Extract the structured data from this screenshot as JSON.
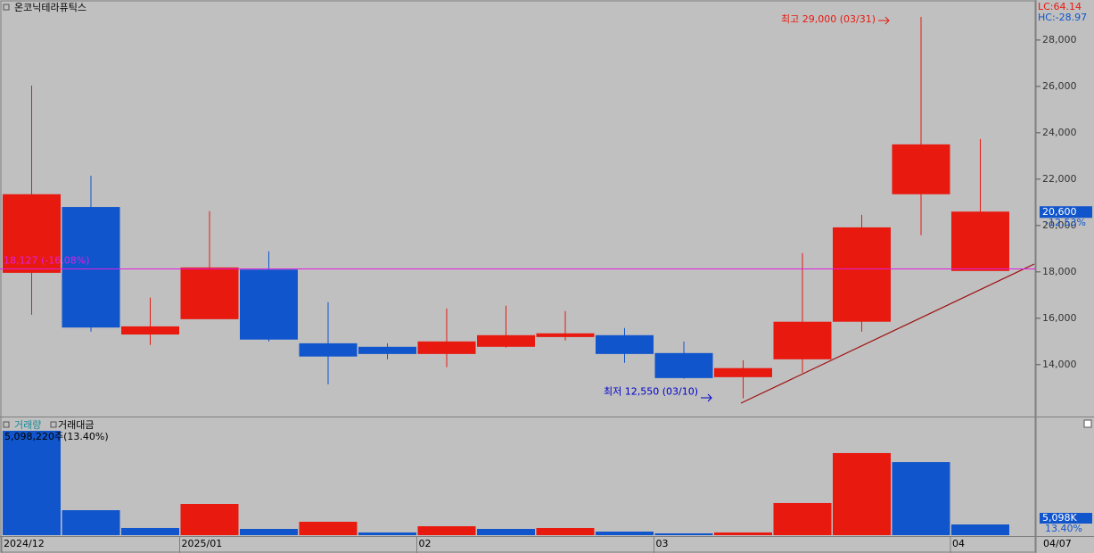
{
  "chart_data": [
    {
      "type": "candlestick",
      "title": "온코닉테라퓨틱스",
      "lc_label": "LC:64.14",
      "hc_label": "HC:-28.97",
      "up_color": "#e8190f",
      "down_color": "#1155cc",
      "open": [
        17960,
        20800,
        15300,
        15960,
        18100,
        14920,
        14770,
        14460,
        14770,
        15190,
        15270,
        14500,
        13460,
        14230,
        15850,
        21350,
        18040
      ],
      "high": [
        26040,
        22150,
        16890,
        20620,
        18890,
        16690,
        14920,
        16420,
        16540,
        16310,
        15580,
        15000,
        14190,
        18810,
        20460,
        29000,
        23730
      ],
      "low": [
        16150,
        15420,
        14850,
        15960,
        15000,
        13150,
        14230,
        13890,
        14730,
        15040,
        14080,
        13390,
        12550,
        13650,
        15420,
        19580,
        18040
      ],
      "close": [
        21350,
        15600,
        15650,
        18190,
        15080,
        14350,
        14460,
        15000,
        15270,
        15350,
        14460,
        13420,
        13850,
        15850,
        19920,
        23500,
        20600
      ],
      "ylim": [
        11800,
        29650
      ],
      "yticks": [
        {
          "value": 14000,
          "label": "14,000"
        },
        {
          "value": 16000,
          "label": "16,000"
        },
        {
          "value": 18000,
          "label": "18,000"
        },
        {
          "value": 20000,
          "label": "20,000"
        },
        {
          "value": 22000,
          "label": "22,000"
        },
        {
          "value": 24000,
          "label": "24,000"
        },
        {
          "value": 26000,
          "label": "26,000"
        },
        {
          "value": 28000,
          "label": "28,000"
        }
      ],
      "high_annotation": {
        "value": 29000,
        "label": "최고 29,000 (03/31)"
      },
      "low_annotation": {
        "value": 12550,
        "label": "최저 12,550 (03/10)"
      },
      "reference_line": {
        "value": 18127,
        "label": "18,127 (-16.08%)",
        "color": "#e020e0"
      },
      "current_price": {
        "value": 20600,
        "label": "20,600",
        "change": "-12.53%"
      }
    },
    {
      "type": "bar",
      "legend": [
        "거래량",
        "거래대금"
      ],
      "max_label": "5,098,220주(13.40%)",
      "right_labels": [
        "5,098K",
        "13.40%"
      ],
      "categories": [
        "2024/12",
        null,
        null,
        "2025/01",
        null,
        null,
        null,
        "02",
        null,
        null,
        null,
        "03",
        null,
        null,
        null,
        null,
        "04"
      ],
      "last_label": "04/07",
      "values": [
        5098220,
        1220000,
        349000,
        1525000,
        305000,
        654000,
        131000,
        436000,
        305000,
        349000,
        174000,
        87000,
        131000,
        1570000,
        4010000,
        3570000,
        523000
      ],
      "colors": [
        "#1155cc",
        "#1155cc",
        "#1155cc",
        "#e8190f",
        "#1155cc",
        "#e8190f",
        "#1155cc",
        "#e8190f",
        "#1155cc",
        "#e8190f",
        "#1155cc",
        "#1155cc",
        "#e8190f",
        "#e8190f",
        "#e8190f",
        "#1155cc",
        "#1155cc"
      ],
      "ylim": [
        0,
        5185000
      ]
    }
  ]
}
